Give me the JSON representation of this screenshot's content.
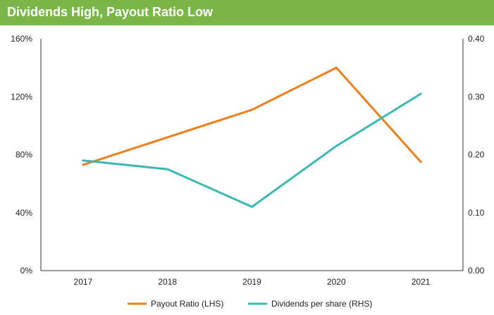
{
  "title": "Dividends High, Payout Ratio Low",
  "chart_data": {
    "type": "line",
    "categories": [
      "2017",
      "2018",
      "2019",
      "2020",
      "2021"
    ],
    "series": [
      {
        "name": "Payout Ratio (LHS)",
        "axis": "left",
        "color": "#ee7f1b",
        "values": [
          73,
          92,
          111,
          140,
          75
        ]
      },
      {
        "name": "Dividends per share (RHS)",
        "axis": "right",
        "color": "#3cb8b4",
        "values": [
          0.19,
          0.175,
          0.11,
          0.215,
          0.305
        ]
      }
    ],
    "y_left": {
      "min": 0,
      "max": 160,
      "ticks": [
        "0%",
        "40%",
        "80%",
        "120%",
        "160%"
      ]
    },
    "y_right": {
      "min": 0,
      "max": 0.4,
      "ticks": [
        "0.00",
        "0.10",
        "0.20",
        "0.30",
        "0.40"
      ]
    },
    "legend_position": "bottom-center",
    "grid": false
  }
}
